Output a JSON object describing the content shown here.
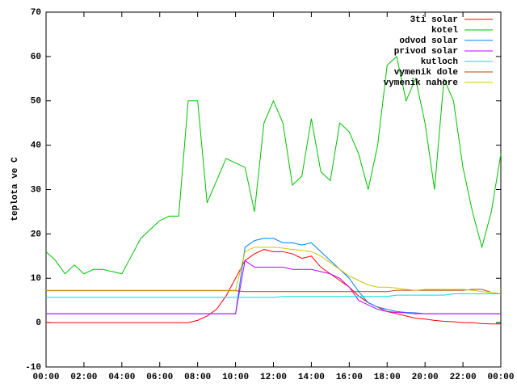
{
  "chart_data": {
    "type": "line",
    "y_label": "teplota ve C",
    "x": [
      0,
      0.5,
      1,
      1.5,
      2,
      2.5,
      3,
      3.5,
      4,
      4.5,
      5,
      5.5,
      6,
      6.5,
      7,
      7.5,
      8,
      8.5,
      9,
      9.5,
      10,
      10.5,
      11,
      11.5,
      12,
      12.5,
      13,
      13.5,
      14,
      14.5,
      15,
      15.5,
      16,
      16.5,
      17,
      17.5,
      18,
      18.5,
      19,
      19.5,
      20,
      20.5,
      21,
      21.5,
      22,
      22.5,
      23,
      23.5,
      24
    ],
    "xlim": [
      0,
      24
    ],
    "xticks": [
      {
        "value": 0,
        "label": "00:00"
      },
      {
        "value": 2,
        "label": "02:00"
      },
      {
        "value": 4,
        "label": "04:00"
      },
      {
        "value": 6,
        "label": "06:00"
      },
      {
        "value": 8,
        "label": "08:00"
      },
      {
        "value": 10,
        "label": "10:00"
      },
      {
        "value": 12,
        "label": "12:00"
      },
      {
        "value": 14,
        "label": "14:00"
      },
      {
        "value": 16,
        "label": "16:00"
      },
      {
        "value": 18,
        "label": "18:00"
      },
      {
        "value": 20,
        "label": "20:00"
      },
      {
        "value": 22,
        "label": "22:00"
      },
      {
        "value": 24,
        "label": "00:00"
      }
    ],
    "ylim": [
      -10,
      70
    ],
    "yticks": [
      -10,
      0,
      10,
      20,
      30,
      40,
      50,
      60,
      70
    ],
    "series": [
      {
        "name": "3ti solar",
        "color": "#ff0000",
        "values": [
          0,
          0,
          0,
          0,
          0,
          0,
          0,
          0,
          0,
          0,
          0,
          0,
          0,
          0,
          0,
          0,
          0.5,
          1.5,
          3,
          6,
          10,
          14,
          15.5,
          16.5,
          16,
          16,
          15.5,
          14.5,
          15,
          12.5,
          11,
          9.5,
          8,
          6,
          4.5,
          3.5,
          2.5,
          2,
          1.5,
          1,
          0.8,
          0.5,
          0.3,
          0.2,
          0,
          0,
          -0.2,
          -0.3,
          -0.3
        ]
      },
      {
        "name": "kotel",
        "color": "#00c000",
        "values": [
          16,
          14,
          11,
          13,
          11,
          12,
          12,
          11.5,
          11,
          15,
          19,
          21,
          23,
          24,
          24,
          50,
          50,
          27,
          32,
          37,
          36,
          35,
          25,
          45,
          50,
          45,
          31,
          33,
          46,
          34,
          32,
          45,
          43,
          38,
          30,
          40,
          58,
          60,
          50,
          55,
          45,
          30,
          55,
          50,
          35,
          25,
          17,
          25,
          38
        ]
      },
      {
        "name": "odvod solar",
        "color": "#0080ff",
        "values": [
          2,
          2,
          2,
          2,
          2,
          2,
          2,
          2,
          2,
          2,
          2,
          2,
          2,
          2,
          2,
          2,
          2,
          2,
          2,
          2,
          2,
          17,
          18.5,
          19,
          19,
          18,
          18,
          17.5,
          18,
          16,
          14,
          12,
          10,
          7,
          4.5,
          3.5,
          3,
          2.5,
          2.3,
          2.2,
          2,
          2,
          2,
          2,
          2,
          2,
          2,
          2,
          2
        ]
      },
      {
        "name": "privod solar",
        "color": "#c000ff",
        "values": [
          2,
          2,
          2,
          2,
          2,
          2,
          2,
          2,
          2,
          2,
          2,
          2,
          2,
          2,
          2,
          2,
          2,
          2,
          2,
          2,
          2,
          14,
          12.5,
          12.5,
          12.5,
          12.5,
          12,
          12,
          12,
          11.5,
          11,
          10,
          8,
          5,
          4,
          3,
          2.5,
          2.3,
          2.2,
          2,
          2,
          2,
          2,
          2,
          2,
          2,
          2,
          2,
          2
        ]
      },
      {
        "name": "kutloch",
        "color": "#00e0e0",
        "values": [
          5.7,
          5.7,
          5.7,
          5.7,
          5.7,
          5.7,
          5.7,
          5.7,
          5.7,
          5.7,
          5.7,
          5.7,
          5.7,
          5.7,
          5.7,
          5.7,
          5.7,
          5.7,
          5.7,
          5.7,
          5.7,
          5.7,
          5.7,
          5.7,
          5.7,
          5.9,
          5.9,
          5.9,
          5.9,
          5.9,
          5.9,
          5.9,
          5.9,
          5.9,
          5.9,
          5.9,
          5.9,
          6.2,
          6.2,
          6.2,
          6.2,
          6.2,
          6.2,
          6.5,
          6.5,
          6.5,
          6.5,
          6.5,
          6.5
        ]
      },
      {
        "name": "vymenik dole",
        "color": "#c04000",
        "values": [
          7.2,
          7.2,
          7.2,
          7.2,
          7.2,
          7.2,
          7.2,
          7.2,
          7.2,
          7.2,
          7.2,
          7.2,
          7.2,
          7.2,
          7.2,
          7.2,
          7.2,
          7.2,
          7.2,
          7.2,
          7.2,
          7,
          7,
          7,
          7,
          7,
          7,
          7,
          7,
          7,
          7,
          7,
          7,
          7,
          7,
          7,
          7,
          7.3,
          7.3,
          7.3,
          7.3,
          7.3,
          7.3,
          7.3,
          7.3,
          7.5,
          7.5,
          6.8,
          6.5
        ]
      },
      {
        "name": "vymenik nahore",
        "color": "#c8c800",
        "values": [
          7.3,
          7.3,
          7.3,
          7.3,
          7.3,
          7.3,
          7.3,
          7.3,
          7.3,
          7.3,
          7.3,
          7.3,
          7.3,
          7.3,
          7.3,
          7.3,
          7.3,
          7.3,
          7.3,
          7.3,
          7.3,
          16,
          17,
          17,
          17,
          16.8,
          16.5,
          16.3,
          16,
          15,
          13.5,
          12,
          10.5,
          9.5,
          8.5,
          8,
          8,
          7.8,
          7.5,
          7.3,
          7.5,
          7.5,
          7.5,
          7.5,
          7.5,
          7.3,
          7,
          6.8,
          6.5
        ]
      }
    ],
    "legend": "upper right"
  }
}
